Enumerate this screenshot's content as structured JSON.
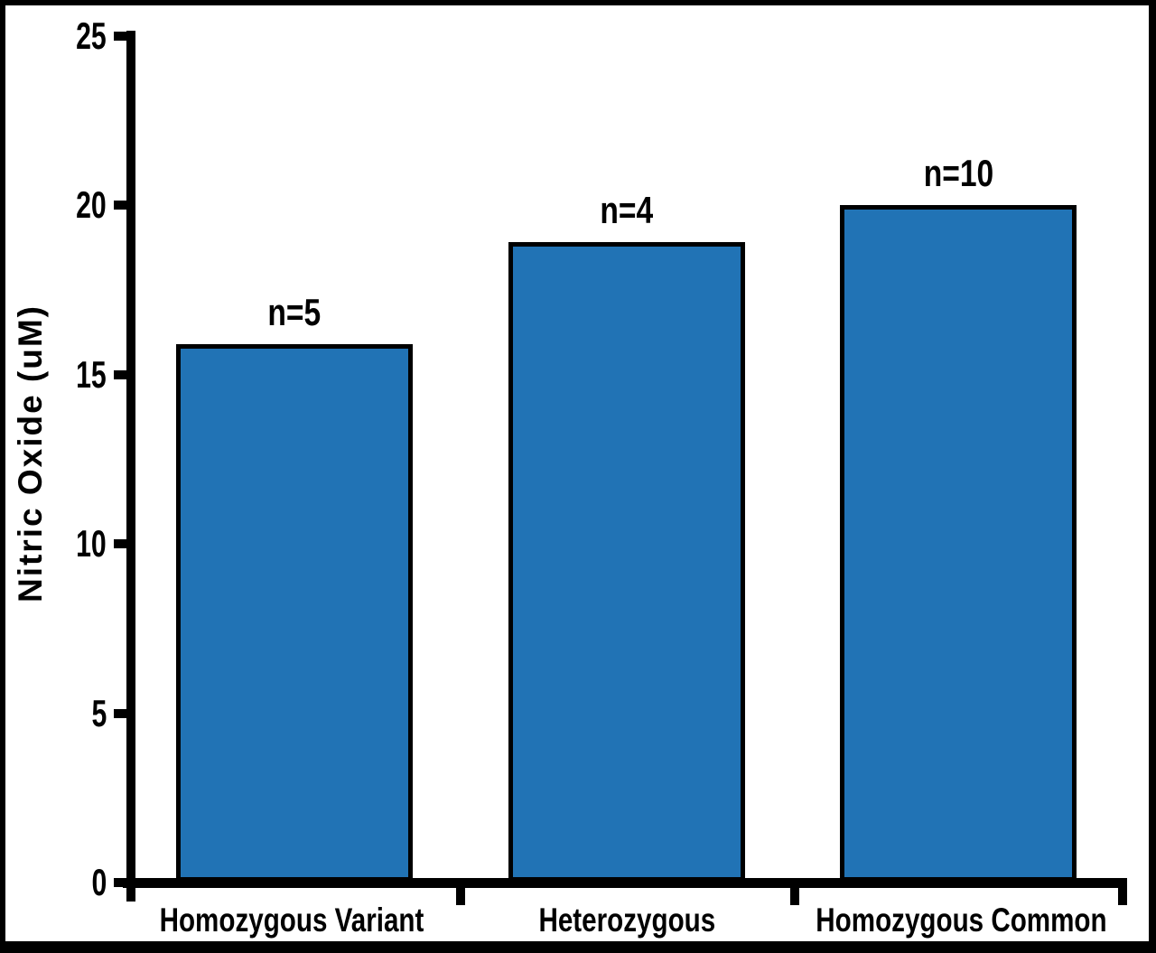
{
  "figure": {
    "background_color": "#FFFFFF",
    "frame_color": "#000000"
  },
  "chart_data": {
    "type": "bar",
    "categories": [
      "Homozygous Variant",
      "Heterozygous",
      "Homozygous Common"
    ],
    "values": [
      15.9,
      18.9,
      20.0
    ],
    "bar_annotations": [
      "n=5",
      "n=4",
      "n=10"
    ],
    "title": "",
    "xlabel": "",
    "ylabel": "Nitric Oxide (uM)",
    "yticks": [
      0,
      5,
      10,
      15,
      20,
      25
    ],
    "ylim": [
      0,
      25
    ],
    "grid": false,
    "legend": "none",
    "bar_color": "#2173B5",
    "bar_edge_color": "#000000",
    "axis_color": "#000000",
    "text_color": "#000000"
  }
}
